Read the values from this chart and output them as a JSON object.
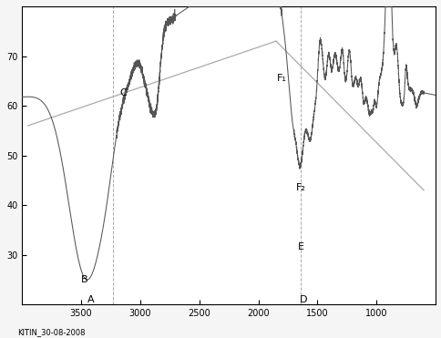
{
  "footer": "KITIN_30-08-2008",
  "background_color": "#f5f5f5",
  "plot_bg_color": "#ffffff",
  "border_color": "#000000",
  "xlim": [
    4000,
    500
  ],
  "ylim": [
    20,
    80
  ],
  "yticks": [
    30,
    40,
    50,
    60,
    70
  ],
  "xticks": [
    3500,
    3000,
    2500,
    2000,
    1500,
    1000
  ],
  "label_A": "A",
  "label_B": "B",
  "label_C": "C",
  "label_D": "D",
  "label_E": "E",
  "label_F1": "F₁",
  "label_F2": "F₂",
  "baseline1_x": [
    3950,
    1850
  ],
  "baseline1_y": [
    56,
    73
  ],
  "baseline2_x": [
    1850,
    600
  ],
  "baseline2_y": [
    73,
    43
  ],
  "vline_C_x": 3230,
  "vline_D_x": 1640,
  "text_A": [
    3420,
    20.5
  ],
  "text_B": [
    3500,
    24.5
  ],
  "text_C": [
    3170,
    62
  ],
  "text_D": [
    1620,
    20.5
  ],
  "text_E": [
    1665,
    31
  ],
  "text_F1": [
    1840,
    65
  ],
  "text_F2": [
    1680,
    43
  ],
  "spectrum_color": "#555555",
  "baseline_color": "#aaaaaa",
  "vline_color": "#aaaaaa",
  "label_color": "#000000",
  "tick_fontsize": 7,
  "label_fontsize": 8
}
